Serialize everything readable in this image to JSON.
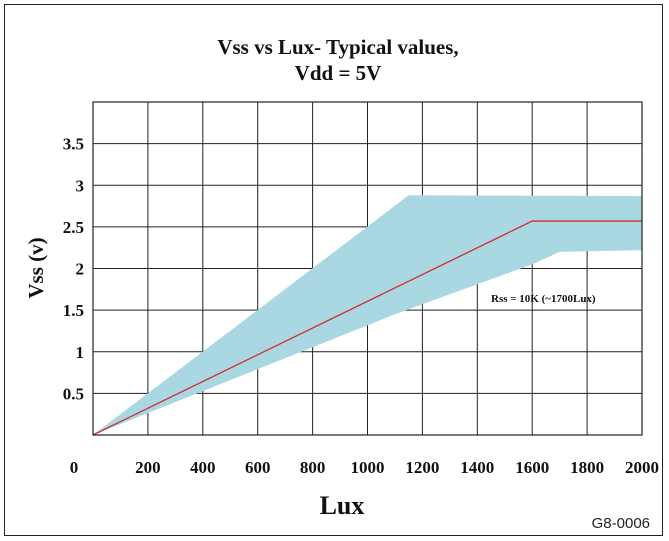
{
  "chart_data": {
    "type": "area",
    "title": [
      "Vss vs Lux- Typical values,",
      "Vdd = 5V"
    ],
    "xlabel": "Lux",
    "ylabel": "Vss (v)",
    "x_ticks": [
      0,
      200,
      400,
      600,
      800,
      1000,
      1200,
      1400,
      1600,
      1800,
      2000
    ],
    "x_tick_labels": [
      "0",
      "200",
      "400",
      "600",
      "800",
      "1000",
      "1200",
      "1400",
      "1600",
      "1800",
      "2000"
    ],
    "y_ticks": [
      0.5,
      1,
      1.5,
      2,
      2.5,
      3,
      3.5
    ],
    "y_tick_labels": [
      "0.5",
      "1",
      "1.5",
      "2",
      "2.5",
      "3",
      "3.5"
    ],
    "xlim": [
      0,
      2000
    ],
    "ylim": [
      0,
      4
    ],
    "grid": true,
    "series": [
      {
        "kind": "band",
        "color": "#a9d8e3",
        "upper": [
          [
            0,
            0
          ],
          [
            1150,
            2.88
          ],
          [
            2000,
            2.87
          ]
        ],
        "lower": [
          [
            0,
            0
          ],
          [
            1100,
            1.45
          ],
          [
            1600,
            2.05
          ],
          [
            1700,
            2.2
          ],
          [
            2000,
            2.22
          ]
        ]
      },
      {
        "kind": "line",
        "color": "#d42a2a",
        "x": [
          0,
          1600,
          2000
        ],
        "y": [
          0,
          2.57,
          2.57
        ]
      }
    ],
    "annotations": [
      {
        "text": "Rss = 10K (~1700Lux)",
        "x": 1450,
        "y": 1.6
      }
    ]
  },
  "figure_code": "G8-0006"
}
